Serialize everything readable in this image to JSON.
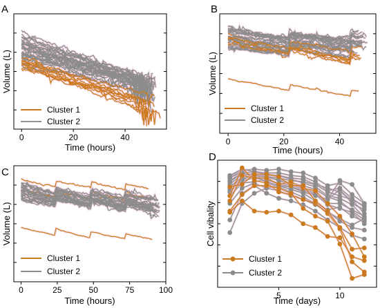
{
  "colors": {
    "cluster1": "#cc7a1f",
    "cluster2": "#8c8c8c",
    "highlight": "#f2c4dc"
  },
  "chart_data": [
    {
      "panel": "A",
      "type": "line",
      "xlabel": "Time (hours)",
      "ylabel": "Volume (L)",
      "xlim": [
        -3,
        56
      ],
      "ylim": [
        0,
        10
      ],
      "xticks": [
        0,
        20,
        40
      ],
      "legend": {
        "position": "bottom-left",
        "entries": [
          "Cluster 1",
          "Cluster 2"
        ]
      },
      "series": [
        {
          "name": "Cluster 1",
          "color": "orange",
          "n_lines": 10,
          "x_range": [
            0,
            54
          ],
          "start": [
            4.8,
            6.7
          ],
          "end": [
            0.9,
            3.2
          ],
          "noise": 0.25
        },
        {
          "name": "Cluster 2",
          "color": "gray",
          "n_lines": 30,
          "x_range": [
            0,
            52
          ],
          "start": [
            5.5,
            8.5
          ],
          "end": [
            2.5,
            5.0
          ],
          "noise": 0.3
        }
      ]
    },
    {
      "panel": "B",
      "type": "line",
      "xlabel": "Time (hours)",
      "ylabel": "Volume (L)",
      "xlim": [
        -3,
        53
      ],
      "ylim": [
        0,
        10
      ],
      "xticks": [
        0,
        20,
        40
      ],
      "legend": {
        "position": "bottom-right",
        "entries": [
          "Cluster 1",
          "Cluster 2"
        ]
      },
      "series": [
        {
          "name": "Cluster 1",
          "color": "orange",
          "n_lines": 7,
          "x_range": [
            0,
            50
          ],
          "start": [
            6.3,
            9.4
          ],
          "end": [
            5.6,
            7.4
          ],
          "noise": 0.18
        },
        {
          "name": "Cluster 1 (low)",
          "color": "orange",
          "n_lines": 1,
          "x_range": [
            0,
            48
          ],
          "start": [
            4.3,
            4.3
          ],
          "end": [
            3.3,
            3.3
          ],
          "noise": 0.08
        },
        {
          "name": "Cluster 2",
          "color": "gray",
          "n_lines": 24,
          "x_range": [
            0,
            50
          ],
          "start": [
            6.5,
            9.0
          ],
          "end": [
            6.3,
            8.6
          ],
          "noise": 0.25
        }
      ]
    },
    {
      "panel": "C",
      "type": "line",
      "xlabel": "Time (hours)",
      "ylabel": "Volume (L)",
      "xlim": [
        -5,
        100
      ],
      "ylim": [
        0,
        10
      ],
      "xticks": [
        0,
        25,
        50,
        75,
        100
      ],
      "legend": {
        "position": "bottom-left",
        "entries": [
          "Cluster 1",
          "Cluster 2"
        ]
      },
      "series": [
        {
          "name": "Cluster 1",
          "color": "orange",
          "n_lines": 3,
          "x_range": [
            0,
            92
          ],
          "start": [
            7.2,
            8.8
          ],
          "end": [
            6.6,
            8.2
          ],
          "noise": 0.15
        },
        {
          "name": "Cluster 1 (low)",
          "color": "orange",
          "n_lines": 1,
          "x_range": [
            0,
            92
          ],
          "start": [
            4.4,
            4.4
          ],
          "end": [
            3.8,
            3.8
          ],
          "noise": 0.08
        },
        {
          "name": "Cluster 2",
          "color": "gray",
          "n_lines": 25,
          "x_range": [
            0,
            96
          ],
          "start": [
            6.4,
            8.6
          ],
          "end": [
            5.7,
            7.6
          ],
          "noise": 0.25
        }
      ]
    },
    {
      "panel": "D",
      "type": "line",
      "xlabel": "Time (days)",
      "ylabel": "Cell vibality",
      "xlim": [
        0,
        13
      ],
      "ylim": [
        0,
        10
      ],
      "xticks": [
        5,
        10
      ],
      "legend": {
        "position": "bottom-left",
        "entries": [
          "Cluster 1",
          "Cluster 2"
        ]
      },
      "x": [
        1,
        2,
        3,
        4,
        5,
        6,
        7,
        8,
        9,
        10,
        11,
        12
      ],
      "series": [
        {
          "name": "Cluster 1",
          "values": [
            7.2,
            9.4,
            8.4,
            8.2,
            7.5,
            7.3,
            6.9,
            6.6,
            5.8,
            4.6,
            2.0,
            1.2
          ]
        },
        {
          "name": "Cluster 1",
          "values": [
            6.8,
            8.8,
            8.6,
            8.6,
            8.1,
            8.3,
            7.8,
            7.6,
            6.6,
            5.6,
            4.2,
            2.4
          ]
        },
        {
          "name": "Cluster 1",
          "values": [
            7.9,
            8.1,
            8.9,
            8.9,
            8.7,
            8.0,
            8.0,
            6.8,
            6.0,
            4.7,
            3.0,
            3.1
          ]
        },
        {
          "name": "Cluster 1",
          "values": [
            6.0,
            7.3,
            8.0,
            8.0,
            7.8,
            7.4,
            6.2,
            5.6,
            5.2,
            3.4,
            0.7,
            1.0
          ]
        },
        {
          "name": "Cluster 1",
          "values": [
            5.9,
            6.8,
            6.0,
            5.9,
            6.0,
            5.7,
            5.0,
            4.7,
            4.0,
            3.9,
            2.4,
            2.1
          ]
        },
        {
          "name": "Cluster 2",
          "values": [
            8.7,
            9.2,
            9.3,
            9.2,
            9.3,
            9.1,
            9.0,
            8.6,
            8.0,
            8.2,
            7.3,
            6.6
          ]
        },
        {
          "name": "Cluster 2",
          "values": [
            8.4,
            9.0,
            9.1,
            9.0,
            9.0,
            8.8,
            8.7,
            8.3,
            7.6,
            7.8,
            7.0,
            6.3
          ]
        },
        {
          "name": "Cluster 2",
          "values": [
            8.8,
            9.3,
            9.1,
            8.9,
            8.8,
            8.6,
            8.5,
            8.1,
            7.8,
            7.5,
            6.9,
            5.8
          ]
        },
        {
          "name": "Cluster 2",
          "values": [
            8.1,
            8.9,
            8.9,
            8.8,
            8.8,
            8.5,
            8.2,
            7.9,
            7.2,
            7.0,
            6.5,
            5.5
          ]
        },
        {
          "name": "Cluster 2",
          "values": [
            7.8,
            8.6,
            8.7,
            8.6,
            8.5,
            8.2,
            8.0,
            7.7,
            7.1,
            6.8,
            6.0,
            5.3
          ]
        },
        {
          "name": "Cluster 2",
          "values": [
            7.5,
            8.4,
            8.6,
            8.4,
            8.2,
            8.0,
            7.7,
            7.3,
            6.9,
            7.7,
            6.6,
            6.1
          ]
        },
        {
          "name": "Cluster 2",
          "values": [
            8.6,
            9.1,
            8.8,
            8.7,
            8.4,
            8.1,
            7.8,
            7.4,
            6.6,
            6.6,
            6.1,
            5.6
          ]
        },
        {
          "name": "Cluster 2",
          "values": [
            7.2,
            8.2,
            8.3,
            8.5,
            8.1,
            7.9,
            7.6,
            7.3,
            6.5,
            6.2,
            5.9,
            5.0
          ]
        },
        {
          "name": "Cluster 2",
          "values": [
            7.9,
            8.7,
            9.0,
            8.2,
            7.9,
            7.5,
            7.1,
            6.6,
            6.1,
            6.3,
            5.6,
            5.2
          ]
        },
        {
          "name": "Cluster 2",
          "values": [
            6.6,
            7.8,
            8.2,
            7.8,
            7.6,
            7.2,
            6.9,
            6.5,
            5.9,
            5.4,
            4.9,
            5.4
          ]
        },
        {
          "name": "Cluster 2",
          "values": [
            4.3,
            6.6,
            7.4,
            7.8,
            8.0,
            7.9,
            7.5,
            7.2,
            6.9,
            8.4,
            8.1,
            6.6
          ]
        },
        {
          "name": "Cluster 2",
          "values": [
            5.3,
            7.4,
            8.0,
            7.4,
            7.0,
            6.8,
            6.5,
            6.0,
            5.3,
            4.7,
            4.1,
            3.8
          ]
        },
        {
          "name": "Cluster 2",
          "values": [
            8.3,
            9.0,
            8.7,
            8.3,
            8.0,
            7.7,
            7.4,
            6.8,
            6.0,
            5.2,
            4.7,
            4.5
          ]
        },
        {
          "name": "Cluster 2",
          "values": [
            7.6,
            8.5,
            8.8,
            8.7,
            8.6,
            8.4,
            8.3,
            8.1,
            7.5,
            7.2,
            6.9,
            6.4
          ]
        }
      ]
    }
  ]
}
